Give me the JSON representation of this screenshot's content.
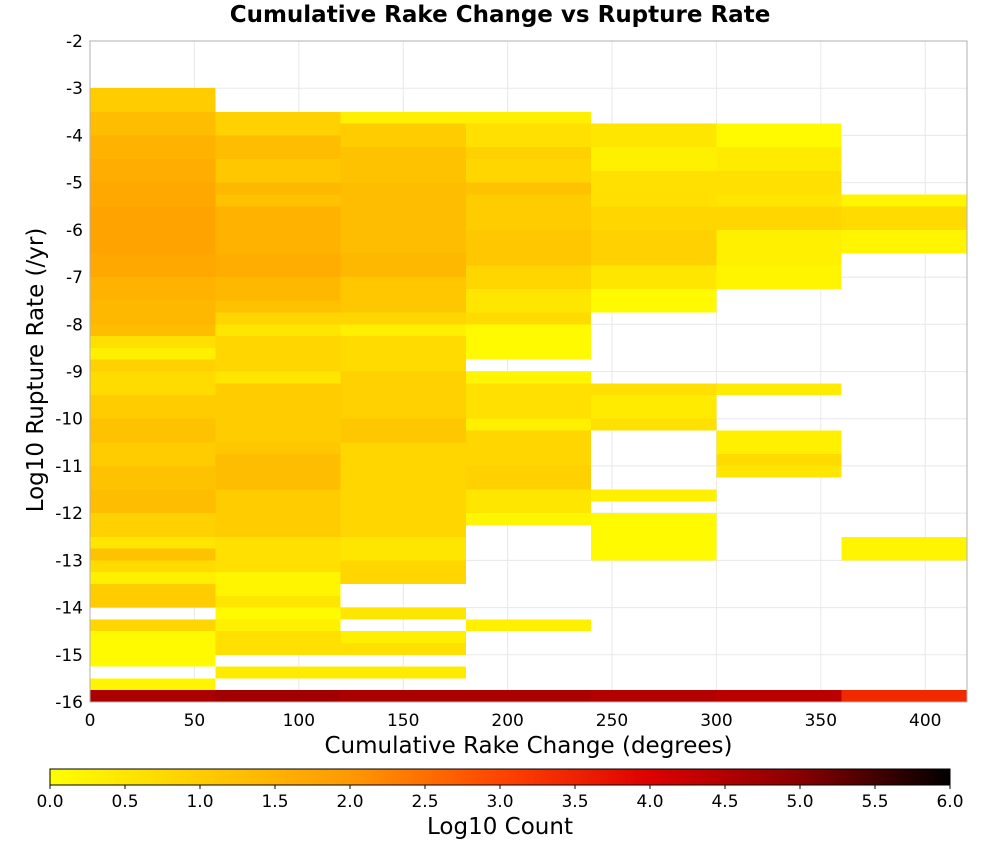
{
  "chart_data": {
    "type": "heatmap",
    "title": "Cumulative Rake Change vs Rupture Rate",
    "xlabel": "Cumulative Rake Change (degrees)",
    "ylabel": "Log10 Rupture Rate (/yr)",
    "xlim": [
      0,
      420
    ],
    "ylim": [
      -16,
      -2
    ],
    "xticks": [
      0,
      50,
      100,
      150,
      200,
      250,
      300,
      350,
      400
    ],
    "yticks": [
      -2,
      -3,
      -4,
      -5,
      -6,
      -7,
      -8,
      -9,
      -10,
      -11,
      -12,
      -13,
      -14,
      -15,
      -16
    ],
    "grid": true,
    "x_bin_width": 60,
    "y_bin_height": 0.25,
    "colorbar": {
      "label": "Log10 Count",
      "min": 0.0,
      "max": 6.0,
      "ticks": [
        "0.0",
        "0.5",
        "1.0",
        "1.5",
        "2.0",
        "2.5",
        "3.0",
        "3.5",
        "4.0",
        "4.5",
        "5.0",
        "5.5",
        "6.0"
      ],
      "colors": [
        "#ffff00",
        "#ffcc00",
        "#ff9900",
        "#ff4400",
        "#dd0000",
        "#880000",
        "#000000"
      ]
    },
    "columns": [
      {
        "x_start": 0,
        "segments": [
          {
            "y_top": -3.0,
            "y_bottom": -3.5,
            "value": 1.0
          },
          {
            "y_top": -3.5,
            "y_bottom": -4.0,
            "value": 1.3
          },
          {
            "y_top": -4.0,
            "y_bottom": -4.5,
            "value": 1.5
          },
          {
            "y_top": -4.5,
            "y_bottom": -5.0,
            "value": 1.6
          },
          {
            "y_top": -5.0,
            "y_bottom": -5.5,
            "value": 1.7
          },
          {
            "y_top": -5.5,
            "y_bottom": -6.5,
            "value": 1.8
          },
          {
            "y_top": -6.5,
            "y_bottom": -7.0,
            "value": 1.7
          },
          {
            "y_top": -7.0,
            "y_bottom": -7.5,
            "value": 1.5
          },
          {
            "y_top": -7.5,
            "y_bottom": -8.0,
            "value": 1.4
          },
          {
            "y_top": -8.0,
            "y_bottom": -8.25,
            "value": 1.3
          },
          {
            "y_top": -8.25,
            "y_bottom": -8.5,
            "value": 0.6
          },
          {
            "y_top": -8.5,
            "y_bottom": -8.75,
            "value": 0.3
          },
          {
            "y_top": -8.75,
            "y_bottom": -9.0,
            "value": 0.9
          },
          {
            "y_top": -9.0,
            "y_bottom": -9.5,
            "value": 0.7
          },
          {
            "y_top": -9.5,
            "y_bottom": -10.0,
            "value": 1.0
          },
          {
            "y_top": -10.0,
            "y_bottom": -10.5,
            "value": 1.2
          },
          {
            "y_top": -10.5,
            "y_bottom": -11.0,
            "value": 1.0
          },
          {
            "y_top": -11.0,
            "y_bottom": -11.5,
            "value": 1.2
          },
          {
            "y_top": -11.5,
            "y_bottom": -12.0,
            "value": 1.3
          },
          {
            "y_top": -12.0,
            "y_bottom": -12.5,
            "value": 0.9
          },
          {
            "y_top": -12.5,
            "y_bottom": -12.75,
            "value": 0.5
          },
          {
            "y_top": -12.75,
            "y_bottom": -13.0,
            "value": 1.2
          },
          {
            "y_top": -13.0,
            "y_bottom": -13.25,
            "value": 0.7
          },
          {
            "y_top": -13.25,
            "y_bottom": -13.5,
            "value": 0.3
          },
          {
            "y_top": -13.5,
            "y_bottom": -14.0,
            "value": 1.0
          },
          {
            "y_top": -14.25,
            "y_bottom": -14.5,
            "value": 0.8
          },
          {
            "y_top": -14.5,
            "y_bottom": -15.25,
            "value": 0.1
          },
          {
            "y_top": -15.5,
            "y_bottom": -15.75,
            "value": 0.2
          }
        ]
      },
      {
        "x_start": 60,
        "segments": [
          {
            "y_top": -3.5,
            "y_bottom": -4.0,
            "value": 0.9
          },
          {
            "y_top": -4.0,
            "y_bottom": -4.5,
            "value": 1.3
          },
          {
            "y_top": -4.5,
            "y_bottom": -5.0,
            "value": 1.1
          },
          {
            "y_top": -5.0,
            "y_bottom": -5.25,
            "value": 1.4
          },
          {
            "y_top": -5.25,
            "y_bottom": -5.5,
            "value": 1.2
          },
          {
            "y_top": -5.5,
            "y_bottom": -6.0,
            "value": 1.5
          },
          {
            "y_top": -6.0,
            "y_bottom": -6.5,
            "value": 1.5
          },
          {
            "y_top": -6.5,
            "y_bottom": -7.0,
            "value": 1.6
          },
          {
            "y_top": -7.0,
            "y_bottom": -7.5,
            "value": 1.4
          },
          {
            "y_top": -7.5,
            "y_bottom": -7.75,
            "value": 1.2
          },
          {
            "y_top": -7.75,
            "y_bottom": -8.0,
            "value": 0.8
          },
          {
            "y_top": -8.0,
            "y_bottom": -8.25,
            "value": 0.5
          },
          {
            "y_top": -8.25,
            "y_bottom": -9.0,
            "value": 0.8
          },
          {
            "y_top": -9.0,
            "y_bottom": -9.25,
            "value": 0.5
          },
          {
            "y_top": -9.25,
            "y_bottom": -10.5,
            "value": 1.0
          },
          {
            "y_top": -10.5,
            "y_bottom": -10.75,
            "value": 1.1
          },
          {
            "y_top": -10.75,
            "y_bottom": -11.5,
            "value": 1.3
          },
          {
            "y_top": -11.5,
            "y_bottom": -12.5,
            "value": 1.0
          },
          {
            "y_top": -12.5,
            "y_bottom": -13.25,
            "value": 0.6
          },
          {
            "y_top": -13.25,
            "y_bottom": -13.75,
            "value": 0.2
          },
          {
            "y_top": -13.75,
            "y_bottom": -14.0,
            "value": 0.5
          },
          {
            "y_top": -14.0,
            "y_bottom": -14.25,
            "value": 0.1
          },
          {
            "y_top": -14.25,
            "y_bottom": -14.5,
            "value": 0.3
          },
          {
            "y_top": -14.5,
            "y_bottom": -15.0,
            "value": 0.6
          },
          {
            "y_top": -15.25,
            "y_bottom": -15.5,
            "value": 0.4
          }
        ]
      },
      {
        "x_start": 120,
        "segments": [
          {
            "y_top": -3.5,
            "y_bottom": -3.75,
            "value": 0.3
          },
          {
            "y_top": -3.75,
            "y_bottom": -4.25,
            "value": 1.0
          },
          {
            "y_top": -4.25,
            "y_bottom": -5.0,
            "value": 1.2
          },
          {
            "y_top": -5.0,
            "y_bottom": -6.5,
            "value": 1.3
          },
          {
            "y_top": -6.5,
            "y_bottom": -7.0,
            "value": 1.4
          },
          {
            "y_top": -7.0,
            "y_bottom": -7.75,
            "value": 1.1
          },
          {
            "y_top": -7.75,
            "y_bottom": -8.0,
            "value": 0.8
          },
          {
            "y_top": -8.0,
            "y_bottom": -8.25,
            "value": 0.3
          },
          {
            "y_top": -8.25,
            "y_bottom": -9.0,
            "value": 0.7
          },
          {
            "y_top": -9.0,
            "y_bottom": -10.0,
            "value": 0.9
          },
          {
            "y_top": -10.0,
            "y_bottom": -10.5,
            "value": 1.1
          },
          {
            "y_top": -10.5,
            "y_bottom": -12.5,
            "value": 0.8
          },
          {
            "y_top": -12.5,
            "y_bottom": -13.0,
            "value": 0.5
          },
          {
            "y_top": -13.0,
            "y_bottom": -13.5,
            "value": 0.8
          },
          {
            "y_top": -14.0,
            "y_bottom": -14.25,
            "value": 0.5
          },
          {
            "y_top": -14.5,
            "y_bottom": -14.75,
            "value": 0.3
          },
          {
            "y_top": -14.75,
            "y_bottom": -15.0,
            "value": 0.6
          },
          {
            "y_top": -15.25,
            "y_bottom": -15.5,
            "value": 0.4
          }
        ]
      },
      {
        "x_start": 180,
        "segments": [
          {
            "y_top": -3.5,
            "y_bottom": -3.75,
            "value": 0.3
          },
          {
            "y_top": -3.75,
            "y_bottom": -4.25,
            "value": 0.6
          },
          {
            "y_top": -4.25,
            "y_bottom": -4.5,
            "value": 0.9
          },
          {
            "y_top": -4.5,
            "y_bottom": -5.0,
            "value": 0.8
          },
          {
            "y_top": -5.0,
            "y_bottom": -5.25,
            "value": 1.2
          },
          {
            "y_top": -5.25,
            "y_bottom": -6.0,
            "value": 1.0
          },
          {
            "y_top": -6.0,
            "y_bottom": -6.75,
            "value": 1.1
          },
          {
            "y_top": -6.75,
            "y_bottom": -7.25,
            "value": 0.8
          },
          {
            "y_top": -7.25,
            "y_bottom": -7.75,
            "value": 0.5
          },
          {
            "y_top": -7.75,
            "y_bottom": -8.0,
            "value": 0.7
          },
          {
            "y_top": -8.0,
            "y_bottom": -8.75,
            "value": 0.1
          },
          {
            "y_top": -9.0,
            "y_bottom": -9.25,
            "value": 0.2
          },
          {
            "y_top": -9.25,
            "y_bottom": -10.0,
            "value": 0.6
          },
          {
            "y_top": -10.0,
            "y_bottom": -10.25,
            "value": 0.3
          },
          {
            "y_top": -10.25,
            "y_bottom": -11.0,
            "value": 0.8
          },
          {
            "y_top": -11.0,
            "y_bottom": -11.5,
            "value": 0.9
          },
          {
            "y_top": -11.5,
            "y_bottom": -12.0,
            "value": 0.5
          },
          {
            "y_top": -12.0,
            "y_bottom": -12.25,
            "value": 0.2
          },
          {
            "y_top": -14.25,
            "y_bottom": -14.5,
            "value": 0.3
          }
        ]
      },
      {
        "x_start": 240,
        "segments": [
          {
            "y_top": -3.75,
            "y_bottom": -4.25,
            "value": 0.5
          },
          {
            "y_top": -4.25,
            "y_bottom": -4.75,
            "value": 0.3
          },
          {
            "y_top": -4.75,
            "y_bottom": -5.5,
            "value": 0.6
          },
          {
            "y_top": -5.5,
            "y_bottom": -6.0,
            "value": 0.8
          },
          {
            "y_top": -6.0,
            "y_bottom": -6.75,
            "value": 0.9
          },
          {
            "y_top": -6.75,
            "y_bottom": -7.25,
            "value": 0.5
          },
          {
            "y_top": -7.25,
            "y_bottom": -7.75,
            "value": 0.1
          },
          {
            "y_top": -9.25,
            "y_bottom": -9.5,
            "value": 0.6
          },
          {
            "y_top": -9.5,
            "y_bottom": -10.0,
            "value": 0.4
          },
          {
            "y_top": -10.0,
            "y_bottom": -10.25,
            "value": 0.6
          },
          {
            "y_top": -11.5,
            "y_bottom": -11.75,
            "value": 0.3
          },
          {
            "y_top": -12.0,
            "y_bottom": -13.0,
            "value": 0.1
          }
        ]
      },
      {
        "x_start": 300,
        "segments": [
          {
            "y_top": -3.75,
            "y_bottom": -4.25,
            "value": 0.1
          },
          {
            "y_top": -4.25,
            "y_bottom": -4.75,
            "value": 0.4
          },
          {
            "y_top": -4.75,
            "y_bottom": -5.25,
            "value": 0.6
          },
          {
            "y_top": -5.25,
            "y_bottom": -5.5,
            "value": 0.5
          },
          {
            "y_top": -5.5,
            "y_bottom": -6.0,
            "value": 0.8
          },
          {
            "y_top": -6.0,
            "y_bottom": -6.75,
            "value": 0.3
          },
          {
            "y_top": -6.75,
            "y_bottom": -7.25,
            "value": 0.2
          },
          {
            "y_top": -9.25,
            "y_bottom": -9.5,
            "value": 0.4
          },
          {
            "y_top": -10.25,
            "y_bottom": -10.75,
            "value": 0.3
          },
          {
            "y_top": -10.75,
            "y_bottom": -11.0,
            "value": 0.7
          },
          {
            "y_top": -11.0,
            "y_bottom": -11.25,
            "value": 0.5
          }
        ]
      },
      {
        "x_start": 360,
        "segments": [
          {
            "y_top": -5.25,
            "y_bottom": -5.5,
            "value": 0.2
          },
          {
            "y_top": -5.5,
            "y_bottom": -6.0,
            "value": 0.7
          },
          {
            "y_top": -6.0,
            "y_bottom": -6.5,
            "value": 0.2
          },
          {
            "y_top": -12.5,
            "y_bottom": -13.0,
            "value": 0.2
          }
        ]
      }
    ],
    "bottom_row": {
      "y_top": -15.75,
      "y_bottom": -16.0,
      "values": [
        4.6,
        4.7,
        4.6,
        4.6,
        4.5,
        4.4,
        3.4
      ]
    }
  }
}
